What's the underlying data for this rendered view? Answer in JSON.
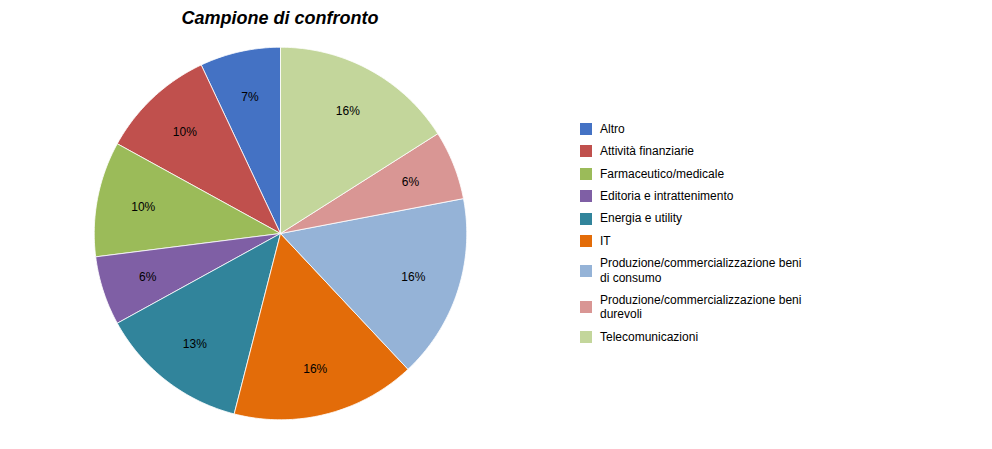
{
  "chart_data": {
    "type": "pie",
    "title": "Campione di confronto",
    "categories": [
      "Altro",
      "Attività finanziarie",
      "Farmaceutico/medicale",
      "Editoria e intrattenimento",
      "Energia e utility",
      "IT",
      "Produzione/commercializzazione beni\ndi consumo",
      "Produzione/commercializzazione beni\ndurevoli",
      "Telecomunicazioni"
    ],
    "values": [
      7,
      10,
      10,
      6,
      13,
      16,
      16,
      6,
      16
    ],
    "value_labels": [
      "7%",
      "10%",
      "10%",
      "6%",
      "13%",
      "16%",
      "16%",
      "6%",
      "16%"
    ],
    "colors": [
      "#4472C4",
      "#C0504D",
      "#9BBB59",
      "#7F5FA5",
      "#31849B",
      "#E36C09",
      "#95B3D7",
      "#D99694",
      "#C3D69B"
    ],
    "data_labels": true,
    "legend": "right"
  }
}
